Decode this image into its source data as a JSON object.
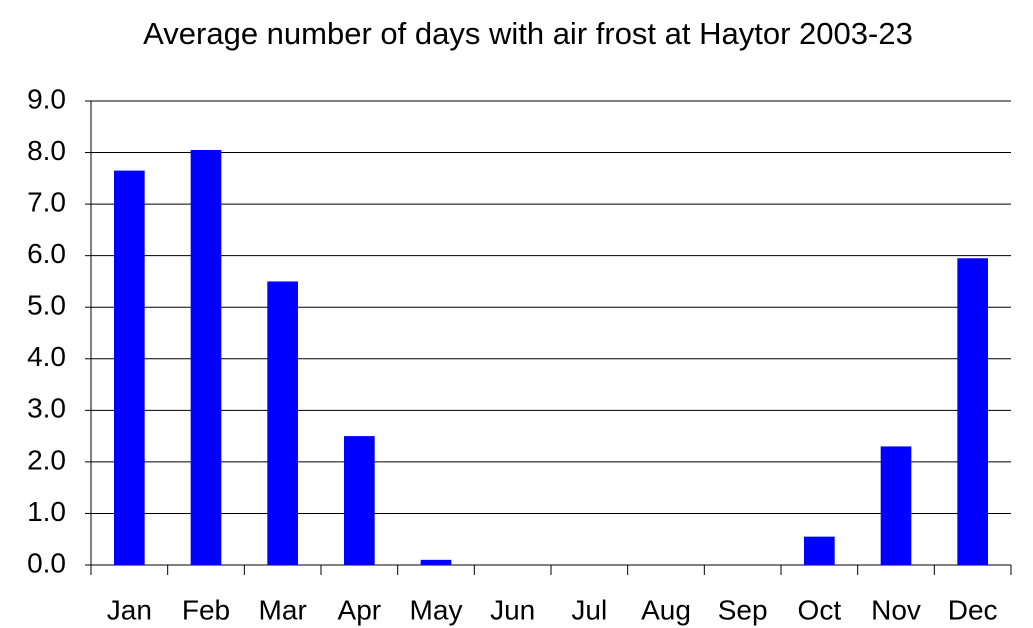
{
  "chart_data": {
    "type": "bar",
    "title": "Average number of days with air frost at Haytor 2003-23",
    "categories": [
      "Jan",
      "Feb",
      "Mar",
      "Apr",
      "May",
      "Jun",
      "Jul",
      "Aug",
      "Sep",
      "Oct",
      "Nov",
      "Dec"
    ],
    "values": [
      7.65,
      8.05,
      5.5,
      2.5,
      0.1,
      0,
      0,
      0,
      0,
      0.55,
      2.3,
      5.95
    ],
    "color": "#0000ff",
    "ylim": [
      0,
      9
    ],
    "yticks": [
      {
        "value": 0,
        "label": "0.0"
      },
      {
        "value": 1,
        "label": "1.0"
      },
      {
        "value": 2,
        "label": "2.0"
      },
      {
        "value": 3,
        "label": "3.0"
      },
      {
        "value": 4,
        "label": "4.0"
      },
      {
        "value": 5,
        "label": "5.0"
      },
      {
        "value": 6,
        "label": "6.0"
      },
      {
        "value": 7,
        "label": "7.0"
      },
      {
        "value": 8,
        "label": "8.0"
      },
      {
        "value": 9,
        "label": "9.0"
      }
    ],
    "grid": true
  }
}
